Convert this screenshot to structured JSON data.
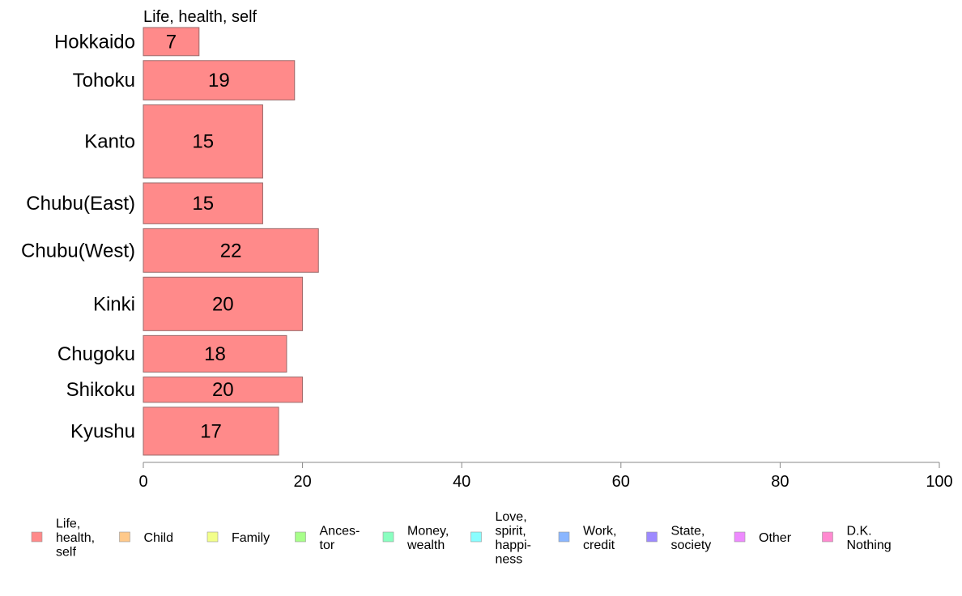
{
  "chart_data": {
    "type": "bar",
    "orientation": "horizontal",
    "categories": [
      "Hokkaido",
      "Tohoku",
      "Kanto",
      "Chubu(East)",
      "Chubu(West)",
      "Kinki",
      "Chugoku",
      "Shikoku",
      "Kyushu"
    ],
    "band_weights": [
      1,
      1.4,
      2.6,
      1.45,
      1.55,
      1.9,
      1.3,
      0.9,
      1.7
    ],
    "series": [
      {
        "name": "Life, health, self",
        "values": [
          7,
          19,
          15,
          15,
          22,
          20,
          18,
          20,
          17
        ],
        "color": "#ff8a8a"
      }
    ],
    "series_title": "Life, health, self",
    "xlim": [
      0,
      100
    ],
    "x_ticks": [
      0,
      20,
      40,
      60,
      80,
      100
    ],
    "legend_placement": "bottom",
    "legend": [
      {
        "lines": [
          "Life,",
          "health,",
          "self"
        ],
        "color": "#ff8a8a"
      },
      {
        "lines": [
          "Child"
        ],
        "color": "#ffc98a"
      },
      {
        "lines": [
          "Family"
        ],
        "color": "#f2ff8a"
      },
      {
        "lines": [
          "Ances-",
          "tor"
        ],
        "color": "#a8ff8a"
      },
      {
        "lines": [
          "Money,",
          "wealth"
        ],
        "color": "#8affc0"
      },
      {
        "lines": [
          "Love,",
          "spirit,",
          "happi-",
          "ness"
        ],
        "color": "#8afdff"
      },
      {
        "lines": [
          "Work,",
          "credit"
        ],
        "color": "#8ab6ff"
      },
      {
        "lines": [
          "State,",
          "society"
        ],
        "color": "#9d8aff"
      },
      {
        "lines": [
          "Other"
        ],
        "color": "#ee8aff"
      },
      {
        "lines": [
          "D.K.",
          "Nothing"
        ],
        "color": "#ff8ad0"
      }
    ],
    "bar_edge_color": "#9a6a6a",
    "axis_color": "#888888"
  }
}
